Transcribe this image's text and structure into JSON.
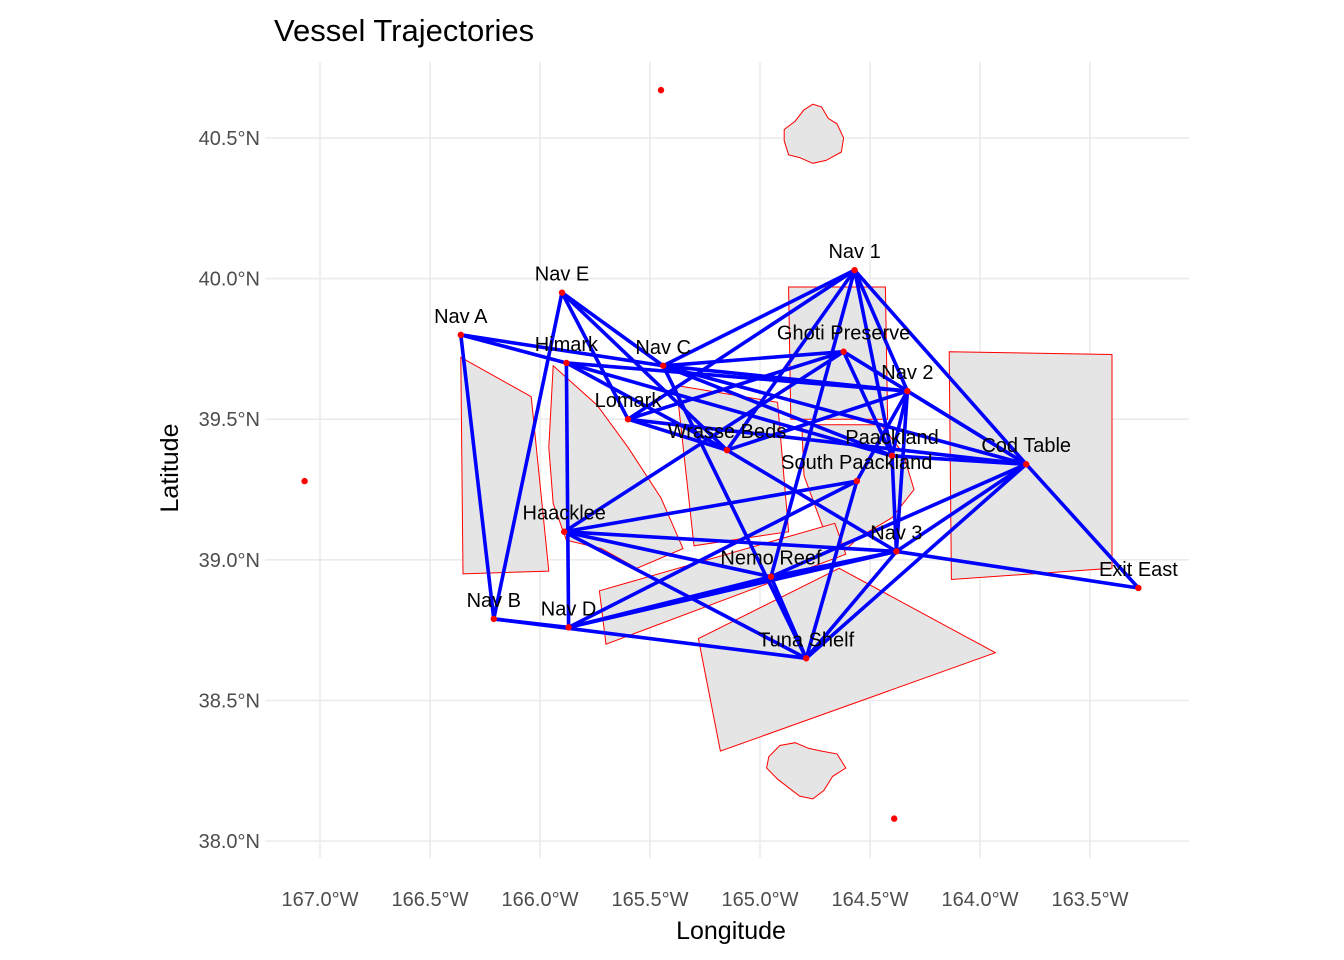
{
  "title": "Vessel Trajectories",
  "x_axis": {
    "label": "Longitude",
    "ticks": [
      {
        "value": -167.0,
        "label": "167.0°W"
      },
      {
        "value": -166.5,
        "label": "166.5°W"
      },
      {
        "value": -166.0,
        "label": "166.0°W"
      },
      {
        "value": -165.5,
        "label": "165.5°W"
      },
      {
        "value": -165.0,
        "label": "165.0°W"
      },
      {
        "value": -164.5,
        "label": "164.5°W"
      },
      {
        "value": -164.0,
        "label": "164.0°W"
      },
      {
        "value": -163.5,
        "label": "163.5°W"
      }
    ]
  },
  "y_axis": {
    "label": "Latitude",
    "ticks": [
      {
        "value": 38.0,
        "label": "38.0°N"
      },
      {
        "value": 38.5,
        "label": "38.5°N"
      },
      {
        "value": 39.0,
        "label": "39.0°N"
      },
      {
        "value": 39.5,
        "label": "39.5°N"
      },
      {
        "value": 40.0,
        "label": "40.0°N"
      },
      {
        "value": 40.5,
        "label": "40.5°N"
      }
    ]
  },
  "colors": {
    "background": "#ffffff",
    "grid": "#ebebeb",
    "region_fill": "#e5e5e5",
    "region_stroke": "#ff0000",
    "point": "#ff0000",
    "trajectory": "#0000ff",
    "label": "#000000",
    "tick_text": "#4d4d4d"
  },
  "chart_data": {
    "type": "map",
    "xlim": [
      -167.25,
      -163.05
    ],
    "ylim": [
      37.94,
      40.77
    ],
    "grid": true,
    "locations": [
      {
        "name": "Nav 1",
        "lon": -164.57,
        "lat": 40.03,
        "labeled": true
      },
      {
        "name": "Nav E",
        "lon": -165.9,
        "lat": 39.95,
        "labeled": true
      },
      {
        "name": "Nav A",
        "lon": -166.36,
        "lat": 39.8,
        "labeled": true
      },
      {
        "name": "Himark",
        "lon": -165.88,
        "lat": 39.7,
        "labeled": true
      },
      {
        "name": "Nav C",
        "lon": -165.44,
        "lat": 39.69,
        "labeled": true
      },
      {
        "name": "Ghoti Preserve",
        "lon": -164.62,
        "lat": 39.74,
        "labeled": true
      },
      {
        "name": "Nav 2",
        "lon": -164.33,
        "lat": 39.6,
        "labeled": true
      },
      {
        "name": "Lomark",
        "lon": -165.6,
        "lat": 39.5,
        "labeled": true
      },
      {
        "name": "Wrasse Beds",
        "lon": -165.15,
        "lat": 39.39,
        "labeled": true
      },
      {
        "name": "Paackland",
        "lon": -164.4,
        "lat": 39.37,
        "labeled": true
      },
      {
        "name": "Cod Table",
        "lon": -163.79,
        "lat": 39.34,
        "labeled": true
      },
      {
        "name": "South Paackland",
        "lon": -164.56,
        "lat": 39.28,
        "labeled": true
      },
      {
        "name": "Nav 3",
        "lon": -164.38,
        "lat": 39.03,
        "labeled": true
      },
      {
        "name": "Haacklee",
        "lon": -165.89,
        "lat": 39.1,
        "labeled": true
      },
      {
        "name": "Exit East",
        "lon": -163.28,
        "lat": 38.9,
        "labeled": true
      },
      {
        "name": "Nemo Reef",
        "lon": -164.95,
        "lat": 38.94,
        "labeled": true
      },
      {
        "name": "Nav B",
        "lon": -166.21,
        "lat": 38.79,
        "labeled": true
      },
      {
        "name": "Nav D",
        "lon": -165.87,
        "lat": 38.76,
        "labeled": true
      },
      {
        "name": "Tuna Shelf",
        "lon": -164.79,
        "lat": 38.65,
        "labeled": true
      },
      {
        "name": "",
        "lon": -165.45,
        "lat": 40.67,
        "labeled": false
      },
      {
        "name": "",
        "lon": -167.07,
        "lat": 39.28,
        "labeled": false
      },
      {
        "name": "",
        "lon": -164.39,
        "lat": 38.08,
        "labeled": false
      }
    ],
    "trajectories": [
      [
        "Nav A",
        "Himark"
      ],
      [
        "Nav A",
        "Nav C"
      ],
      [
        "Nav A",
        "Nav B"
      ],
      [
        "Nav E",
        "Wrasse Beds"
      ],
      [
        "Nav E",
        "Nav C"
      ],
      [
        "Nav E",
        "Lomark"
      ],
      [
        "Nav E",
        "Nav B"
      ],
      [
        "Himark",
        "Nav 2"
      ],
      [
        "Himark",
        "Wrasse Beds"
      ],
      [
        "Himark",
        "Nav D"
      ],
      [
        "Himark",
        "Paackland"
      ],
      [
        "Nav C",
        "Nav 1"
      ],
      [
        "Nav C",
        "Ghoti Preserve"
      ],
      [
        "Nav C",
        "Cod Table"
      ],
      [
        "Nav C",
        "Paackland"
      ],
      [
        "Nav C",
        "Nav 2"
      ],
      [
        "Nav C",
        "Tuna Shelf"
      ],
      [
        "Lomark",
        "Ghoti Preserve"
      ],
      [
        "Lomark",
        "Cod Table"
      ],
      [
        "Lomark",
        "Wrasse Beds"
      ],
      [
        "Wrasse Beds",
        "Nav 1"
      ],
      [
        "Wrasse Beds",
        "Nav 2"
      ],
      [
        "Wrasse Beds",
        "Nav 3"
      ],
      [
        "Ghoti Preserve",
        "Cod Table"
      ],
      [
        "Ghoti Preserve",
        "Paackland"
      ],
      [
        "Ghoti Preserve",
        "Haacklee"
      ],
      [
        "Nav 1",
        "Cod Table"
      ],
      [
        "Nav 1",
        "Paackland"
      ],
      [
        "Nav 1",
        "Lomark"
      ],
      [
        "Nav 2",
        "Cod Table"
      ],
      [
        "Nav 2",
        "Paackland"
      ],
      [
        "Nav 2",
        "Nav 3"
      ],
      [
        "Nav 2",
        "Nav 1"
      ],
      [
        "Cod Table",
        "Paackland"
      ],
      [
        "Cod Table",
        "Exit East"
      ],
      [
        "Cod Table",
        "Nav 3"
      ],
      [
        "Cod Table",
        "Nemo Reef"
      ],
      [
        "Cod Table",
        "Tuna Shelf"
      ],
      [
        "Paackland",
        "Nav 3"
      ],
      [
        "South Paackland",
        "Haacklee"
      ],
      [
        "South Paackland",
        "Nav D"
      ],
      [
        "South Paackland",
        "Tuna Shelf"
      ],
      [
        "South Paackland",
        "Nav 2"
      ],
      [
        "Nav 3",
        "Exit East"
      ],
      [
        "Nav 3",
        "Nav D"
      ],
      [
        "Nav 3",
        "Tuna Shelf"
      ],
      [
        "Nav 3",
        "Haacklee"
      ],
      [
        "Haacklee",
        "Tuna Shelf"
      ],
      [
        "Haacklee",
        "Nemo Reef"
      ],
      [
        "Nav B",
        "Tuna Shelf"
      ],
      [
        "Nav B",
        "Nav D"
      ],
      [
        "Nav D",
        "Nemo Reef"
      ],
      [
        "Nemo Reef",
        "Tuna Shelf"
      ],
      [
        "Nemo Reef",
        "Nav 1"
      ],
      [
        "Nemo Reef",
        "Nav 3"
      ]
    ],
    "regions": [
      {
        "name": "island-north",
        "coords": [
          [
            -164.89,
            40.53
          ],
          [
            -164.84,
            40.56
          ],
          [
            -164.8,
            40.6
          ],
          [
            -164.76,
            40.62
          ],
          [
            -164.72,
            40.61
          ],
          [
            -164.69,
            40.57
          ],
          [
            -164.65,
            40.55
          ],
          [
            -164.62,
            40.5
          ],
          [
            -164.63,
            40.45
          ],
          [
            -164.7,
            40.42
          ],
          [
            -164.76,
            40.41
          ],
          [
            -164.82,
            40.43
          ],
          [
            -164.87,
            40.44
          ],
          [
            -164.89,
            40.49
          ]
        ]
      },
      {
        "name": "island-south",
        "coords": [
          [
            -164.96,
            38.3
          ],
          [
            -164.91,
            38.34
          ],
          [
            -164.84,
            38.35
          ],
          [
            -164.78,
            38.33
          ],
          [
            -164.72,
            38.32
          ],
          [
            -164.65,
            38.31
          ],
          [
            -164.61,
            38.26
          ],
          [
            -164.67,
            38.23
          ],
          [
            -164.71,
            38.18
          ],
          [
            -164.76,
            38.15
          ],
          [
            -164.82,
            38.16
          ],
          [
            -164.87,
            38.19
          ],
          [
            -164.92,
            38.22
          ],
          [
            -164.97,
            38.26
          ]
        ]
      },
      {
        "name": "zone-west",
        "coords": [
          [
            -166.36,
            39.72
          ],
          [
            -166.04,
            39.58
          ],
          [
            -165.96,
            38.96
          ],
          [
            -166.35,
            38.95
          ]
        ]
      },
      {
        "name": "mainland-west",
        "coords": [
          [
            -165.94,
            39.69
          ],
          [
            -165.74,
            39.55
          ],
          [
            -165.6,
            39.4
          ],
          [
            -165.45,
            39.22
          ],
          [
            -165.35,
            39.04
          ],
          [
            -165.56,
            38.97
          ],
          [
            -165.72,
            39.04
          ],
          [
            -165.88,
            39.07
          ],
          [
            -165.94,
            39.2
          ],
          [
            -165.96,
            39.4
          ]
        ]
      },
      {
        "name": "zone-wrasse",
        "coords": [
          [
            -165.38,
            39.62
          ],
          [
            -164.92,
            39.56
          ],
          [
            -164.87,
            39.1
          ],
          [
            -165.3,
            39.05
          ]
        ]
      },
      {
        "name": "zone-ghoti",
        "coords": [
          [
            -164.87,
            39.97
          ],
          [
            -164.43,
            39.97
          ],
          [
            -164.42,
            39.5
          ],
          [
            -164.86,
            39.5
          ]
        ]
      },
      {
        "name": "mainland-east",
        "coords": [
          [
            -164.81,
            39.48
          ],
          [
            -164.45,
            39.48
          ],
          [
            -164.35,
            39.38
          ],
          [
            -164.3,
            39.25
          ],
          [
            -164.4,
            39.15
          ],
          [
            -164.55,
            39.08
          ],
          [
            -164.66,
            39.0
          ],
          [
            -164.73,
            39.15
          ],
          [
            -164.8,
            39.3
          ]
        ]
      },
      {
        "name": "zone-cod",
        "coords": [
          [
            -164.14,
            39.74
          ],
          [
            -163.4,
            39.73
          ],
          [
            -163.4,
            38.97
          ],
          [
            -164.13,
            38.93
          ]
        ]
      },
      {
        "name": "zone-reef",
        "coords": [
          [
            -165.73,
            38.89
          ],
          [
            -164.66,
            39.13
          ],
          [
            -164.61,
            39.02
          ],
          [
            -165.7,
            38.7
          ]
        ]
      },
      {
        "name": "zone-tuna-shelf",
        "coords": [
          [
            -165.28,
            38.72
          ],
          [
            -164.64,
            38.97
          ],
          [
            -163.93,
            38.67
          ],
          [
            -165.18,
            38.32
          ]
        ]
      }
    ]
  }
}
